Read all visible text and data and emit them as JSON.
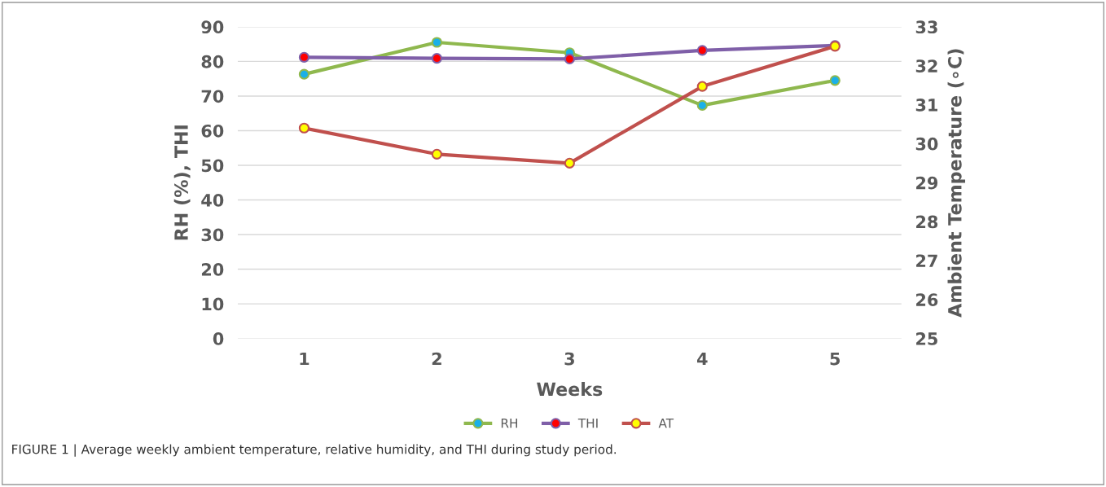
{
  "chart_data": {
    "type": "line",
    "xlabel": "Weeks",
    "ylabel": "RH (%), THI",
    "y2label": "Ambient Temperature (∘C)",
    "categories": [
      "1",
      "2",
      "3",
      "4",
      "5"
    ],
    "series": [
      {
        "name": "RH",
        "color": "#8fb84e",
        "colors": [
          "#1ab0e8",
          "#1ab0e8",
          "#1ab0e8",
          "#1ab0e8",
          "#1ab0e8"
        ],
        "values": [
          76.3,
          85.5,
          82.5,
          67.3,
          74.5
        ]
      },
      {
        "name": "THI",
        "color": "#7f5fa8",
        "colors": [
          "#ff0000",
          "#ff0000",
          "#ff0000",
          "#ff0000",
          "#ff0000"
        ],
        "values": [
          81.2,
          80.9,
          80.7,
          83.2,
          84.6
        ]
      },
      {
        "name": "AT",
        "color": "#c0504d",
        "colors": [
          "#ffff00",
          "#ffff00",
          "#ffff00",
          "#ffff00",
          "#ffff00"
        ],
        "axis": "y2",
        "values": [
          30.4,
          29.73,
          29.5,
          31.47,
          32.5
        ]
      }
    ],
    "ylim": [
      0,
      90
    ],
    "yticks": [
      0,
      10,
      20,
      30,
      40,
      50,
      60,
      70,
      80,
      90
    ],
    "y2lim": [
      25,
      33
    ],
    "y2ticks": [
      25,
      26,
      27,
      28,
      29,
      30,
      31,
      32,
      33
    ],
    "grid": "y",
    "legend": "bottom",
    "marker": "circle",
    "annotations": [
      "FIGURE 1 | Average weekly ambient temperature, relative humidity, and THI during study period."
    ]
  }
}
